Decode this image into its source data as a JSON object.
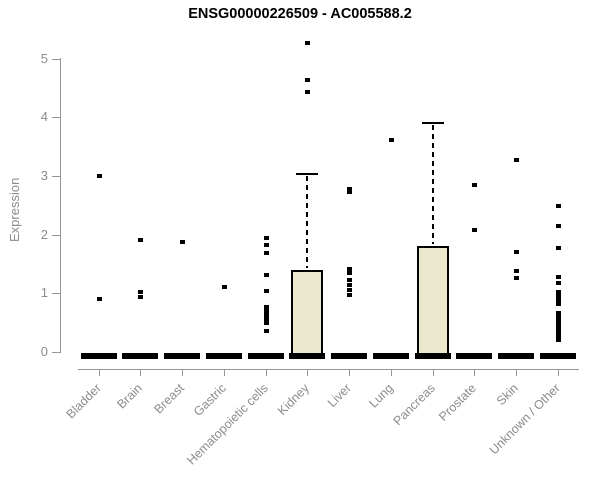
{
  "chart_data": {
    "type": "boxplot",
    "title": "ENSG00000226509 - AC005588.2",
    "ylabel": "Expression",
    "ylim": [
      0,
      5
    ],
    "yticks": [
      0,
      1,
      2,
      3,
      4,
      5
    ],
    "grid": false,
    "legend": "none",
    "categories": [
      "Bladder",
      "Brain",
      "Breast",
      "Gastric",
      "Hematopoietic cells",
      "Kidney",
      "Liver",
      "Lung",
      "Pancreas",
      "Prostate",
      "Skin",
      "Unknown / Other"
    ],
    "groups": [
      {
        "category": "Bladder",
        "median": 0,
        "q1": 0,
        "q3": 0,
        "whisker_high": 0,
        "points": [
          3.0,
          0.9
        ]
      },
      {
        "category": "Brain",
        "median": 0,
        "q1": 0,
        "q3": 0,
        "whisker_high": 0,
        "points": [
          1.9,
          1.02,
          0.94
        ]
      },
      {
        "category": "Breast",
        "median": 0,
        "q1": 0,
        "q3": 0,
        "whisker_high": 0,
        "points": [
          1.88
        ]
      },
      {
        "category": "Gastric",
        "median": 0,
        "q1": 0,
        "q3": 0,
        "whisker_high": 0,
        "points": [
          1.1
        ]
      },
      {
        "category": "Hematopoietic cells",
        "median": 0,
        "q1": 0,
        "q3": 0,
        "whisker_high": 0,
        "points": [
          1.94,
          1.83,
          1.68,
          1.32,
          1.04,
          0.77,
          0.7,
          0.63,
          0.56,
          0.49,
          0.36
        ]
      },
      {
        "category": "Kidney",
        "median": 0,
        "q1": 0,
        "q3": 1.39,
        "whisker_high": 3.04,
        "points": [
          5.26,
          4.63,
          4.43
        ]
      },
      {
        "category": "Liver",
        "median": 0,
        "q1": 0,
        "q3": 0,
        "whisker_high": 0,
        "points": [
          2.78,
          2.72,
          1.42,
          1.34,
          1.22,
          1.14,
          1.05,
          0.97
        ]
      },
      {
        "category": "Lung",
        "median": 0,
        "q1": 0,
        "q3": 0,
        "whisker_high": 0,
        "points": [
          3.62
        ]
      },
      {
        "category": "Pancreas",
        "median": 0,
        "q1": 0,
        "q3": 1.8,
        "whisker_high": 3.9,
        "points": []
      },
      {
        "category": "Prostate",
        "median": 0,
        "q1": 0,
        "q3": 0,
        "whisker_high": 0,
        "points": [
          2.85,
          2.07
        ]
      },
      {
        "category": "Skin",
        "median": 0,
        "q1": 0,
        "q3": 0,
        "whisker_high": 0,
        "points": [
          3.27,
          1.7,
          1.38,
          1.26
        ]
      },
      {
        "category": "Unknown / Other",
        "median": 0,
        "q1": 0,
        "q3": 0,
        "whisker_high": 0,
        "points": [
          2.48,
          2.15,
          1.78,
          1.28,
          1.18,
          1.02,
          0.95,
          0.88,
          0.82,
          0.66,
          0.61,
          0.56,
          0.51,
          0.46,
          0.41,
          0.36,
          0.31,
          0.26,
          0.2
        ]
      }
    ],
    "colors": {
      "box_fill": "#ece8cd",
      "box_border": "#000000",
      "median": "#000000",
      "point": "#000000",
      "axis": "#969696",
      "label_text": "#8c8c8c",
      "title_text": "#000000",
      "background": "#ffffff"
    }
  }
}
